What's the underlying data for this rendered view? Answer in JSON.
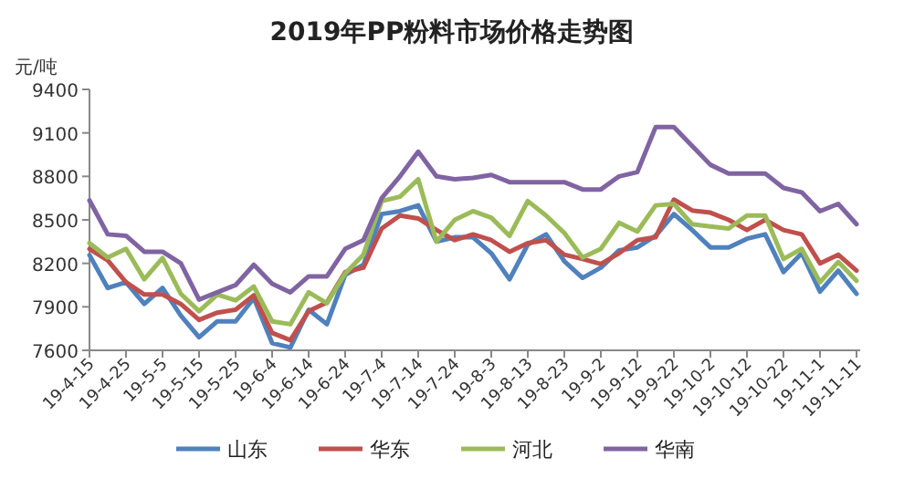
{
  "chart_data": {
    "type": "line",
    "title": "2019年PP粉料市场价格走势图",
    "ylabel": "元/吨",
    "x": [
      "2019-04-15",
      "2019-04-20",
      "2019-04-25",
      "2019-04-30",
      "2019-05-05",
      "2019-05-10",
      "2019-05-15",
      "2019-05-20",
      "2019-05-25",
      "2019-05-30",
      "2019-06-04",
      "2019-06-09",
      "2019-06-14",
      "2019-06-19",
      "2019-06-24",
      "2019-06-29",
      "2019-07-04",
      "2019-07-09",
      "2019-07-14",
      "2019-07-19",
      "2019-07-24",
      "2019-07-29",
      "2019-08-03",
      "2019-08-08",
      "2019-08-13",
      "2019-08-18",
      "2019-08-23",
      "2019-08-28",
      "2019-09-02",
      "2019-09-07",
      "2019-09-12",
      "2019-09-17",
      "2019-09-22",
      "2019-09-27",
      "2019-10-02",
      "2019-10-07",
      "2019-10-12",
      "2019-10-17",
      "2019-10-22",
      "2019-10-27",
      "2019-11-01",
      "2019-11-06",
      "2019-11-11"
    ],
    "series": [
      {
        "name": "山东",
        "color": "#4f81bd",
        "values": [
          8257,
          8030,
          8070,
          7920,
          8030,
          7840,
          7690,
          7800,
          7800,
          7960,
          7650,
          7620,
          7880,
          7780,
          8120,
          8190,
          8540,
          8560,
          8600,
          8350,
          8380,
          8380,
          8270,
          8090,
          8330,
          8400,
          8215,
          8100,
          8170,
          8290,
          8310,
          8390,
          8540,
          8430,
          8310,
          8310,
          8370,
          8400,
          8140,
          8270,
          8005,
          8150,
          7990
        ]
      },
      {
        "name": "华东",
        "color": "#c0504d",
        "values": [
          8300,
          8220,
          8070,
          7985,
          7985,
          7920,
          7810,
          7860,
          7880,
          7980,
          7720,
          7670,
          7870,
          7930,
          8140,
          8170,
          8440,
          8530,
          8510,
          8430,
          8360,
          8400,
          8360,
          8280,
          8340,
          8360,
          8260,
          8230,
          8195,
          8270,
          8360,
          8380,
          8640,
          8565,
          8550,
          8500,
          8430,
          8500,
          8430,
          8400,
          8200,
          8260,
          8150
        ]
      },
      {
        "name": "河北",
        "color": "#9bbb59",
        "values": [
          8340,
          8240,
          8300,
          8090,
          8236,
          7990,
          7870,
          7985,
          7945,
          8040,
          7800,
          7780,
          8000,
          7925,
          8130,
          8260,
          8630,
          8660,
          8780,
          8350,
          8500,
          8560,
          8515,
          8390,
          8630,
          8530,
          8410,
          8240,
          8300,
          8480,
          8420,
          8600,
          8610,
          8470,
          8455,
          8440,
          8530,
          8530,
          8230,
          8300,
          8070,
          8210,
          8080
        ]
      },
      {
        "name": "华南",
        "color": "#8064a2",
        "values": [
          8634,
          8400,
          8390,
          8280,
          8280,
          8200,
          7950,
          8000,
          8050,
          8190,
          8060,
          8000,
          8110,
          8110,
          8300,
          8360,
          8650,
          8800,
          8970,
          8800,
          8780,
          8790,
          8810,
          8760,
          8760,
          8760,
          8760,
          8710,
          8710,
          8800,
          8830,
          9140,
          9140,
          9010,
          8880,
          8820,
          8820,
          8820,
          8720,
          8690,
          8560,
          8610,
          8470
        ]
      }
    ],
    "xlim": [
      "2019-04-15",
      "2019-11-12"
    ],
    "ylim": [
      7600,
      9400
    ],
    "yticks": [
      7600,
      7900,
      8200,
      8500,
      8800,
      9100,
      9400
    ],
    "xticks": [
      {
        "value": "2019-04-15",
        "label": "19-4-15"
      },
      {
        "value": "2019-04-25",
        "label": "19-4-25"
      },
      {
        "value": "2019-05-05",
        "label": "19-5-5"
      },
      {
        "value": "2019-05-15",
        "label": "19-5-15"
      },
      {
        "value": "2019-05-25",
        "label": "19-5-25"
      },
      {
        "value": "2019-06-04",
        "label": "19-6-4"
      },
      {
        "value": "2019-06-14",
        "label": "19-6-14"
      },
      {
        "value": "2019-06-24",
        "label": "19-6-24"
      },
      {
        "value": "2019-07-04",
        "label": "19-7-4"
      },
      {
        "value": "2019-07-14",
        "label": "19-7-14"
      },
      {
        "value": "2019-07-24",
        "label": "19-7-24"
      },
      {
        "value": "2019-08-03",
        "label": "19-8-3"
      },
      {
        "value": "2019-08-13",
        "label": "19-8-13"
      },
      {
        "value": "2019-08-23",
        "label": "19-8-23"
      },
      {
        "value": "2019-09-02",
        "label": "19-9-2"
      },
      {
        "value": "2019-09-12",
        "label": "19-9-12"
      },
      {
        "value": "2019-09-22",
        "label": "19-9-22"
      },
      {
        "value": "2019-10-02",
        "label": "19-10-2"
      },
      {
        "value": "2019-10-12",
        "label": "19-10-12"
      },
      {
        "value": "2019-10-22",
        "label": "19-10-22"
      },
      {
        "value": "2019-11-01",
        "label": "19-11-1"
      },
      {
        "value": "2019-11-11",
        "label": "19-11-11"
      }
    ],
    "legend": "bottom"
  }
}
